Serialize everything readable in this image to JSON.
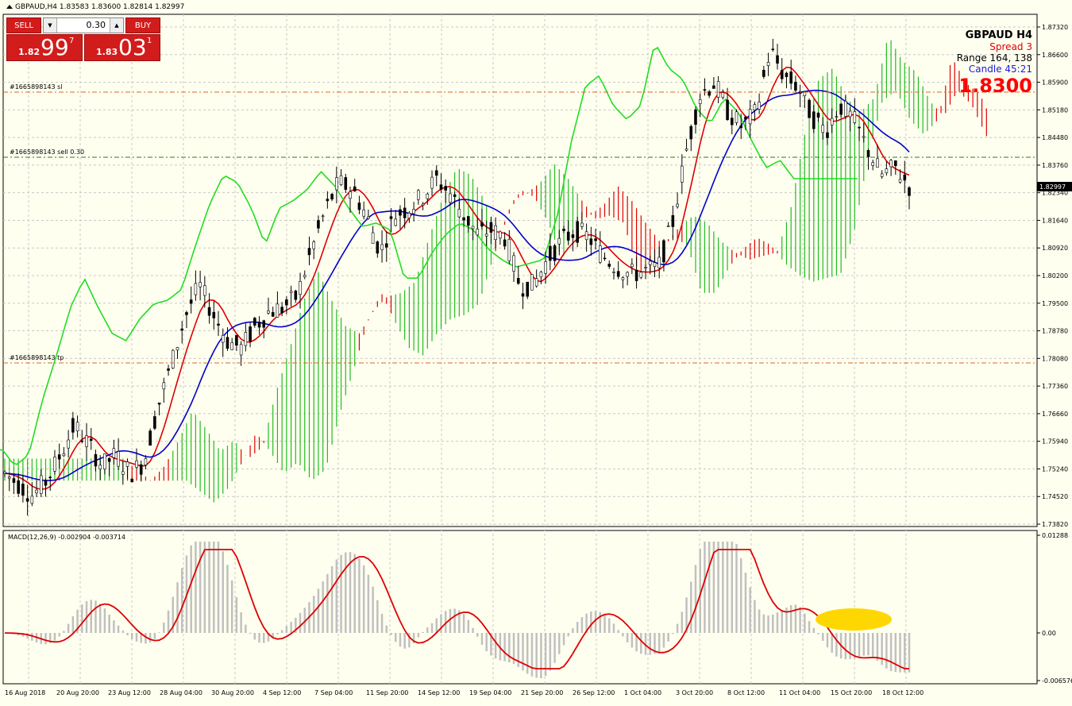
{
  "chart": {
    "symbol_line": "GBPAUD,H4  1.83583 1.83600 1.82814 1.82997",
    "macd_label": "MACD(12,26,9) -0.002904 -0.003714",
    "order_sl_label": "#1665898143 sl",
    "order_sell_label": "#1665898143 sell 0.30",
    "order_tp_label": "#1665898143 tp",
    "current_price_tag": "1.82997"
  },
  "trade_panel": {
    "sell_label": "SELL",
    "buy_label": "BUY",
    "lot_value": "0.30",
    "bid_small": "1.82",
    "bid_big": "99",
    "bid_sup": "7",
    "ask_small": "1.83",
    "ask_big": "03",
    "ask_sup": "1"
  },
  "info_panel": {
    "symbol": "GBPAUD   H4",
    "spread": "Spread  3",
    "range": "Range   164, 138",
    "candle": "Candle  45:21",
    "price": "1.8300"
  },
  "price_axis": [
    "1.87320",
    "1.86600",
    "1.85900",
    "1.85180",
    "1.84480",
    "1.83760",
    "1.82340",
    "1.81640",
    "1.80920",
    "1.80200",
    "1.79500",
    "1.78780",
    "1.78080",
    "1.77360",
    "1.76660",
    "1.75940",
    "1.75240",
    "1.74520",
    "1.73820"
  ],
  "macd_axis": [
    "0.01288",
    "0.00",
    "-0.006576"
  ],
  "time_axis": [
    "16 Aug 2018",
    "20 Aug 20:00",
    "23 Aug 12:00",
    "28 Aug 04:00",
    "30 Aug 20:00",
    "4 Sep 12:00",
    "7 Sep 04:00",
    "11 Sep 20:00",
    "14 Sep 12:00",
    "19 Sep 04:00",
    "21 Sep 20:00",
    "26 Sep 12:00",
    "1 Oct 04:00",
    "3 Oct 20:00",
    "8 Oct 12:00",
    "11 Oct 04:00",
    "15 Oct 20:00",
    "18 Oct 12:00"
  ],
  "colors": {
    "chikou": "#22dd22",
    "tenkan": "#dd0000",
    "kijun": "#0000cc",
    "cloud_up": "#22bb22",
    "cloud_down": "#dd0000",
    "macd_hist": "#c0c0c0",
    "macd_signal": "#dd0000",
    "highlight": "#ffd700"
  },
  "chart_data": {
    "type": "line",
    "title": "GBPAUD,H4",
    "ylim": [
      1.7382,
      1.8732
    ],
    "price_path": [
      1.752,
      1.749,
      1.746,
      1.75,
      1.757,
      1.765,
      1.76,
      1.754,
      1.757,
      1.752,
      1.755,
      1.77,
      1.782,
      1.795,
      1.803,
      1.795,
      1.788,
      1.786,
      1.792,
      1.796,
      1.797,
      1.8,
      1.812,
      1.823,
      1.831,
      1.829,
      1.822,
      1.812,
      1.822,
      1.824,
      1.827,
      1.832,
      1.828,
      1.822,
      1.817,
      1.818,
      1.816,
      1.803,
      1.803,
      1.81,
      1.815,
      1.818,
      1.816,
      1.811,
      1.808,
      1.806,
      1.807,
      1.808,
      1.82,
      1.84,
      1.855,
      1.858,
      1.85,
      1.846,
      1.85,
      1.867,
      1.86,
      1.857,
      1.849,
      1.845,
      1.852,
      1.848,
      1.84,
      1.833,
      1.835,
      1.83
    ]
  }
}
